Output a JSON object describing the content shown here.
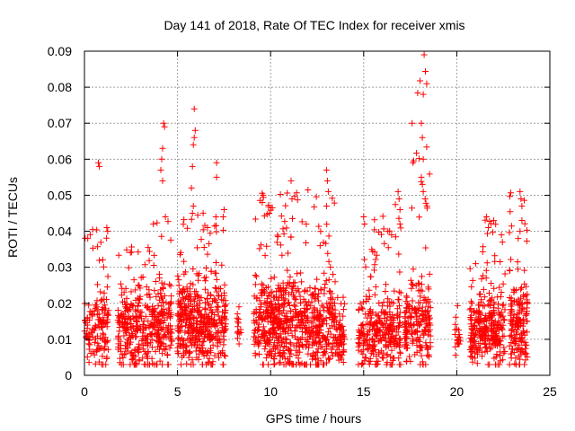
{
  "chart_data": {
    "type": "scatter",
    "title": "Day 141 of 2018, Rate Of TEC Index for receiver xmis",
    "xlabel": "GPS time / hours",
    "ylabel": "ROTI / TECUs",
    "xlim": [
      0,
      25
    ],
    "ylim": [
      0,
      0.09
    ],
    "x_ticks": [
      "0",
      "5",
      "10",
      "15",
      "20",
      "25"
    ],
    "y_ticks": [
      "0",
      "0.01",
      "0.02",
      "0.03",
      "0.04",
      "0.05",
      "0.06",
      "0.07",
      "0.08",
      "0.09"
    ],
    "grid": true,
    "marker": "+",
    "color": "#ff0000",
    "clusters": [
      {
        "x": [
          0.0,
          1.3
        ],
        "base": 0.012,
        "spread": 0.01,
        "n": 140,
        "max": 0.041
      },
      {
        "x": [
          1.8,
          3.2
        ],
        "base": 0.013,
        "spread": 0.012,
        "n": 200,
        "max": 0.036
      },
      {
        "x": [
          3.2,
          4.7
        ],
        "base": 0.013,
        "spread": 0.013,
        "n": 200,
        "max": 0.043
      },
      {
        "x": [
          5.0,
          6.2
        ],
        "base": 0.014,
        "spread": 0.013,
        "n": 220,
        "max": 0.045
      },
      {
        "x": [
          6.2,
          7.6
        ],
        "base": 0.014,
        "spread": 0.013,
        "n": 220,
        "max": 0.046
      },
      {
        "x": [
          8.2,
          8.4
        ],
        "base": 0.013,
        "spread": 0.006,
        "n": 15,
        "max": 0.019
      },
      {
        "x": [
          9.1,
          10.5
        ],
        "base": 0.014,
        "spread": 0.013,
        "n": 240,
        "max": 0.051
      },
      {
        "x": [
          10.5,
          12.0
        ],
        "base": 0.014,
        "spread": 0.014,
        "n": 240,
        "max": 0.054
      },
      {
        "x": [
          12.0,
          13.5
        ],
        "base": 0.013,
        "spread": 0.013,
        "n": 220,
        "max": 0.057
      },
      {
        "x": [
          13.5,
          14.0
        ],
        "base": 0.01,
        "spread": 0.008,
        "n": 60,
        "max": 0.022
      },
      {
        "x": [
          14.7,
          16.0
        ],
        "base": 0.012,
        "spread": 0.011,
        "n": 170,
        "max": 0.044
      },
      {
        "x": [
          16.0,
          17.0
        ],
        "base": 0.012,
        "spread": 0.011,
        "n": 140,
        "max": 0.051
      },
      {
        "x": [
          17.2,
          18.6
        ],
        "base": 0.014,
        "spread": 0.013,
        "n": 200,
        "max": 0.089
      },
      {
        "x": [
          19.9,
          20.2
        ],
        "base": 0.01,
        "spread": 0.006,
        "n": 20,
        "max": 0.026
      },
      {
        "x": [
          20.7,
          21.3
        ],
        "base": 0.012,
        "spread": 0.009,
        "n": 100,
        "max": 0.033
      },
      {
        "x": [
          21.3,
          22.6
        ],
        "base": 0.013,
        "spread": 0.012,
        "n": 190,
        "max": 0.044
      },
      {
        "x": [
          22.8,
          23.8
        ],
        "base": 0.014,
        "spread": 0.013,
        "n": 170,
        "max": 0.051
      }
    ],
    "outliers": [
      {
        "x": 0.75,
        "y": 0.059
      },
      {
        "x": 0.8,
        "y": 0.058
      },
      {
        "x": 1.2,
        "y": 0.041
      },
      {
        "x": 1.25,
        "y": 0.04
      },
      {
        "x": 3.7,
        "y": 0.042
      },
      {
        "x": 4.1,
        "y": 0.057
      },
      {
        "x": 4.15,
        "y": 0.06
      },
      {
        "x": 4.2,
        "y": 0.063
      },
      {
        "x": 4.25,
        "y": 0.07
      },
      {
        "x": 4.3,
        "y": 0.069
      },
      {
        "x": 4.2,
        "y": 0.054
      },
      {
        "x": 4.35,
        "y": 0.044
      },
      {
        "x": 5.75,
        "y": 0.052
      },
      {
        "x": 5.8,
        "y": 0.058
      },
      {
        "x": 5.85,
        "y": 0.064
      },
      {
        "x": 5.9,
        "y": 0.066
      },
      {
        "x": 5.95,
        "y": 0.068
      },
      {
        "x": 5.9,
        "y": 0.074
      },
      {
        "x": 5.8,
        "y": 0.045
      },
      {
        "x": 5.85,
        "y": 0.047
      },
      {
        "x": 7.1,
        "y": 0.059
      },
      {
        "x": 7.1,
        "y": 0.055
      },
      {
        "x": 7.5,
        "y": 0.046
      },
      {
        "x": 7.45,
        "y": 0.044
      },
      {
        "x": 9.6,
        "y": 0.05
      },
      {
        "x": 9.55,
        "y": 0.048
      },
      {
        "x": 11.1,
        "y": 0.054
      },
      {
        "x": 11.15,
        "y": 0.049
      },
      {
        "x": 13.0,
        "y": 0.057
      },
      {
        "x": 13.05,
        "y": 0.054
      },
      {
        "x": 13.1,
        "y": 0.051
      },
      {
        "x": 13.0,
        "y": 0.047
      },
      {
        "x": 15.0,
        "y": 0.044
      },
      {
        "x": 15.05,
        "y": 0.042
      },
      {
        "x": 16.3,
        "y": 0.04
      },
      {
        "x": 16.5,
        "y": 0.039
      },
      {
        "x": 16.85,
        "y": 0.051
      },
      {
        "x": 16.9,
        "y": 0.049
      },
      {
        "x": 16.95,
        "y": 0.046
      },
      {
        "x": 16.95,
        "y": 0.042
      },
      {
        "x": 17.6,
        "y": 0.07
      },
      {
        "x": 17.65,
        "y": 0.059
      },
      {
        "x": 18.1,
        "y": 0.07
      },
      {
        "x": 18.15,
        "y": 0.066
      },
      {
        "x": 18.2,
        "y": 0.078
      },
      {
        "x": 18.25,
        "y": 0.089
      },
      {
        "x": 18.2,
        "y": 0.06
      },
      {
        "x": 18.1,
        "y": 0.055
      },
      {
        "x": 18.15,
        "y": 0.053
      },
      {
        "x": 18.2,
        "y": 0.051
      },
      {
        "x": 18.3,
        "y": 0.049
      },
      {
        "x": 18.4,
        "y": 0.047
      },
      {
        "x": 21.6,
        "y": 0.044
      },
      {
        "x": 21.7,
        "y": 0.041
      },
      {
        "x": 22.4,
        "y": 0.039
      },
      {
        "x": 22.45,
        "y": 0.037
      },
      {
        "x": 23.4,
        "y": 0.051
      },
      {
        "x": 23.45,
        "y": 0.049
      },
      {
        "x": 23.5,
        "y": 0.047
      },
      {
        "x": 23.5,
        "y": 0.043
      },
      {
        "x": 23.4,
        "y": 0.04
      },
      {
        "x": 23.3,
        "y": 0.038
      }
    ]
  }
}
